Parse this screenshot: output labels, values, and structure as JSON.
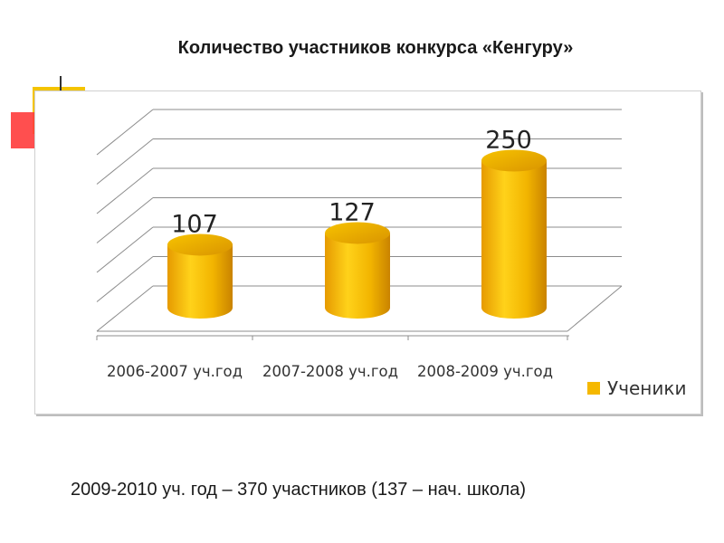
{
  "chart_data": {
    "type": "bar",
    "title": "Количество участников  конкурса «Кенгуру»",
    "categories": [
      "2006-2007 уч.год",
      "2007-2008 уч.год",
      "2008-2009 уч.год"
    ],
    "series": [
      {
        "name": "Ученики",
        "values": [
          107,
          127,
          250
        ],
        "color": "#f5b800"
      }
    ],
    "ylim": [
      0,
      300
    ],
    "grid": true,
    "legend": "right",
    "xlabel": "",
    "ylabel": ""
  },
  "footnote": "2009-2010 уч. год – 370 участников (137 – нач. школа)"
}
